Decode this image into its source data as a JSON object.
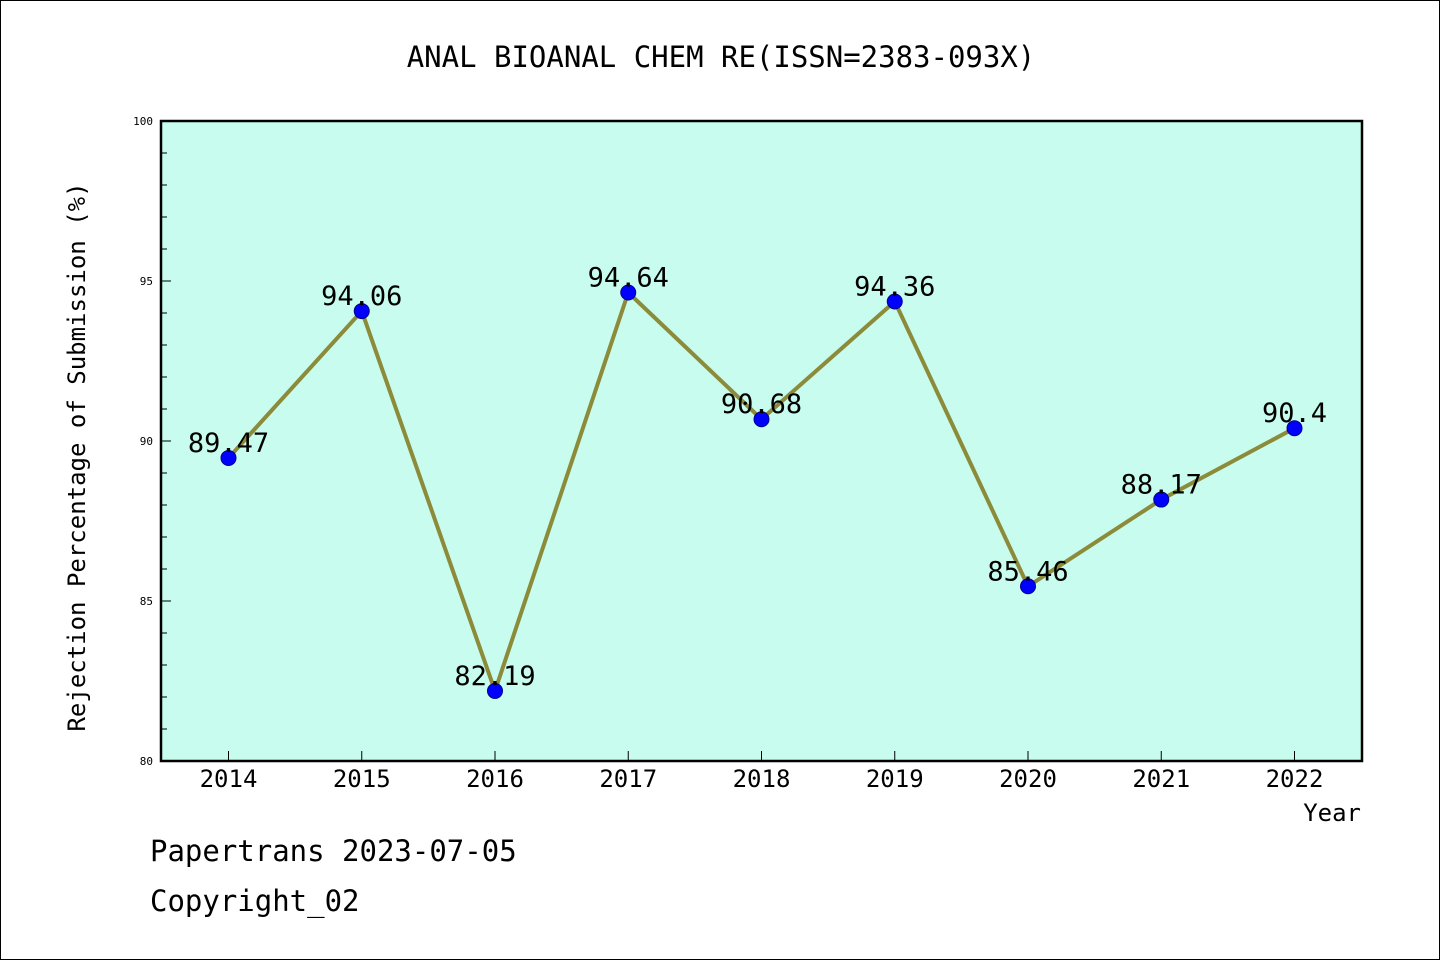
{
  "chart_data": {
    "type": "line",
    "title": "ANAL BIOANAL CHEM RE(ISSN=2383-093X)",
    "xlabel": "Year",
    "ylabel": "Rejection Percentage of Submission (%)",
    "categories": [
      "2014",
      "2015",
      "2016",
      "2017",
      "2018",
      "2019",
      "2020",
      "2021",
      "2022"
    ],
    "series": [
      {
        "values": [
          89.47,
          94.06,
          82.19,
          94.64,
          90.68,
          94.36,
          85.46,
          88.17,
          90.4
        ],
        "labels": [
          "89.47",
          "94.06",
          "82.19",
          "94.64",
          "90.68",
          "94.36",
          "85.46",
          "88.17",
          "90.4"
        ]
      }
    ],
    "ylim": [
      80,
      100
    ],
    "yticks": [
      "80",
      "85",
      "90",
      "95",
      "100"
    ],
    "grid": false,
    "colors": {
      "plot_background": "#c8fcee",
      "line": "#8b8b3a",
      "marker": "#0000ff"
    }
  },
  "footer": {
    "line1": "Papertrans 2023-07-05",
    "line2": "Copyright_02"
  }
}
